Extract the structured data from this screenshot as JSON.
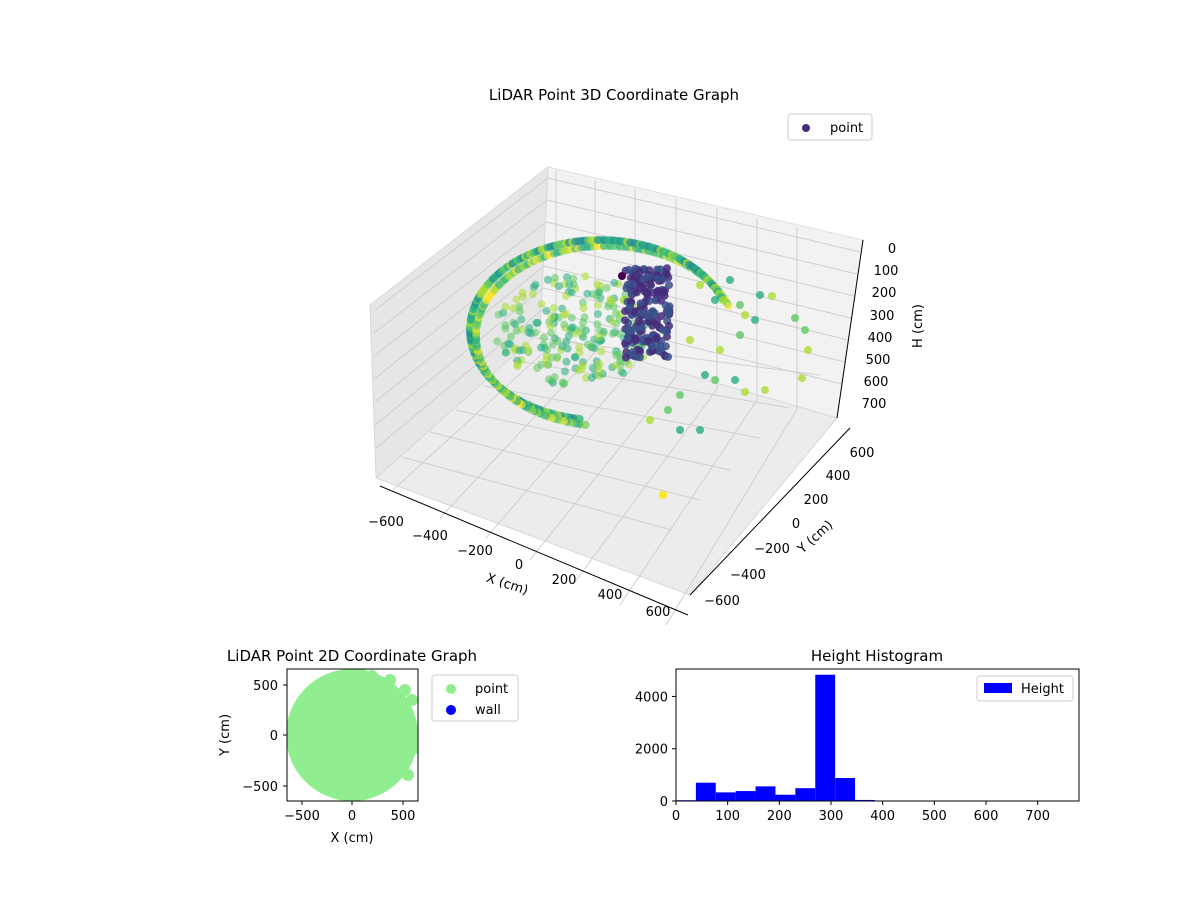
{
  "chart_data": [
    {
      "type": "scatter3d",
      "title": "LiDAR Point 3D Coordinate Graph",
      "xlabel": "X (cm)",
      "ylabel": "Y (cm)",
      "zlabel": "H (cm)",
      "xticks": [
        "−600",
        "−400",
        "−200",
        "0",
        "200",
        "400",
        "600"
      ],
      "yticks": [
        "−600",
        "−400",
        "−200",
        "0",
        "200",
        "400",
        "600"
      ],
      "zticks": [
        "0",
        "100",
        "200",
        "300",
        "400",
        "500",
        "600",
        "700"
      ],
      "xlim": [
        -650,
        650
      ],
      "ylim": [
        -650,
        650
      ],
      "zlim": [
        0,
        750
      ],
      "z_inverted": true,
      "colormap": "viridis",
      "legend": {
        "label": "point",
        "color": "#472c7a",
        "placement": "upper-right"
      },
      "grid": true,
      "points_description": "Ring of points radius ~500 cm at height ~300 cm with dense column of points near (0,0)"
    },
    {
      "type": "scatter",
      "title": "LiDAR Point 2D Coordinate Graph",
      "xlabel": "X (cm)",
      "ylabel": "Y (cm)",
      "xticks": [
        "−500",
        "0",
        "500"
      ],
      "yticks": [
        "500",
        "0",
        "−500"
      ],
      "xlim": [
        -650,
        650
      ],
      "ylim": [
        -650,
        650
      ],
      "series": [
        {
          "name": "point",
          "color": "#90ee90"
        },
        {
          "name": "wall",
          "color": "#0000ff"
        }
      ],
      "legend_placement": "outside-right"
    },
    {
      "type": "bar",
      "title": "Height Histogram",
      "xlabel": "",
      "ylabel": "",
      "xticks": [
        "0",
        "100",
        "200",
        "300",
        "400",
        "500",
        "600",
        "700"
      ],
      "yticks": [
        "0",
        "2000",
        "4000"
      ],
      "xlim": [
        0,
        780
      ],
      "ylim": [
        0,
        5050
      ],
      "bin_width": 38.5,
      "bins": [
        {
          "x0": 0,
          "value": 30
        },
        {
          "x0": 38.5,
          "value": 700
        },
        {
          "x0": 77,
          "value": 330
        },
        {
          "x0": 115.5,
          "value": 380
        },
        {
          "x0": 154,
          "value": 560
        },
        {
          "x0": 192.5,
          "value": 240
        },
        {
          "x0": 231,
          "value": 490
        },
        {
          "x0": 269.5,
          "value": 4830
        },
        {
          "x0": 308,
          "value": 880
        },
        {
          "x0": 346.5,
          "value": 40
        },
        {
          "x0": 385,
          "value": 5
        },
        {
          "x0": 423.5,
          "value": 3
        },
        {
          "x0": 462,
          "value": 2
        },
        {
          "x0": 500.5,
          "value": 2
        },
        {
          "x0": 539,
          "value": 2
        },
        {
          "x0": 577.5,
          "value": 1
        },
        {
          "x0": 616,
          "value": 1
        },
        {
          "x0": 654.5,
          "value": 1
        },
        {
          "x0": 693,
          "value": 1
        },
        {
          "x0": 731.5,
          "value": 1
        }
      ],
      "color": "#0000ff",
      "legend": {
        "label": "Height",
        "placement": "upper-right"
      }
    }
  ]
}
